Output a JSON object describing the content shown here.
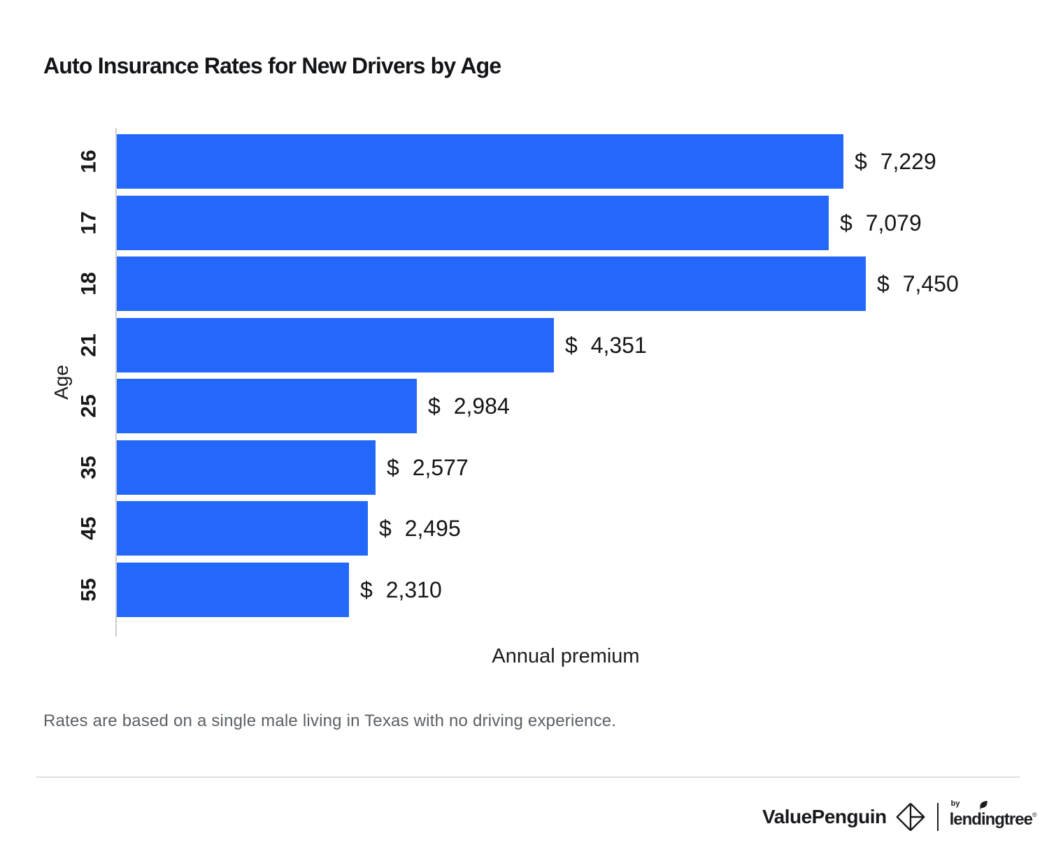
{
  "chart_data": {
    "type": "bar",
    "orientation": "horizontal",
    "title": "Auto Insurance Rates for New Drivers by Age",
    "categories": [
      "16",
      "17",
      "18",
      "21",
      "25",
      "35",
      "45",
      "55"
    ],
    "values": [
      7229,
      7079,
      7450,
      4351,
      2984,
      2577,
      2495,
      2310
    ],
    "value_labels": [
      "$ 7,229",
      "$ 7,079",
      "$ 7,450",
      "$ 4,351",
      "$ 2,984",
      "$ 2,577",
      "$ 2,495",
      "$ 2,310"
    ],
    "xlabel": "Annual premium",
    "ylabel": "Age",
    "xlim": [
      0,
      8626
    ],
    "grid": false,
    "legend": false,
    "bar_color": "#2368fa",
    "axis_line_color": "#cccccc"
  },
  "footnote": {
    "text": "Rates are based on a single male living in Texas with no driving experience."
  },
  "footer": {
    "brand_primary": "ValuePenguin",
    "byline": "by",
    "brand_secondary": "lendingtree",
    "registered_mark": "®",
    "icons": {
      "diamond": "valuepenguin-origami-diamond-icon",
      "leaf": "leaf-icon"
    }
  }
}
